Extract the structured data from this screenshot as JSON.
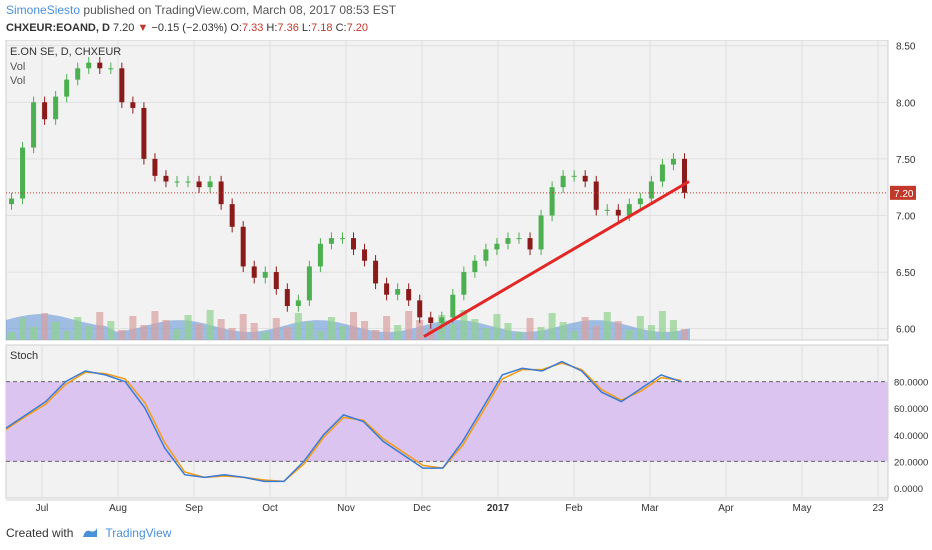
{
  "header": {
    "author": "SimoneSiesto",
    "published": "published on TradingView.com, March 08, 2017 08:53 EST",
    "symbol": "CHXEUR:EOAND, D",
    "last": "7.20",
    "change": "−0.15 (−2.03%)",
    "o_label": "O:",
    "o_val": "7.33",
    "h_label": "H:",
    "h_val": "7.36",
    "l_label": "L:",
    "l_val": "7.18",
    "c_label": "C:",
    "c_val": "7.20"
  },
  "footer": {
    "created_with": "Created with",
    "brand": "TradingView"
  },
  "chart_data": [
    {
      "type": "candlestick",
      "title": "E.ON SE, D, CHXEUR",
      "legend": [
        "Vol",
        "Vol"
      ],
      "ylim": [
        5.9,
        8.55
      ],
      "yticks": [
        "8.50",
        "8.00",
        "7.50",
        "7.00",
        "6.50",
        "6.00"
      ],
      "last_price_label": "7.20",
      "x_labels": [
        "Jul",
        "Aug",
        "Sep",
        "Oct",
        "Nov",
        "Dec",
        "2017",
        "Feb",
        "Mar",
        "Apr",
        "May",
        "23"
      ],
      "close": [
        7.15,
        7.6,
        8.0,
        7.85,
        8.05,
        8.2,
        8.3,
        8.35,
        8.3,
        8.3,
        8.0,
        7.95,
        7.5,
        7.35,
        7.3,
        7.3,
        7.3,
        7.25,
        7.3,
        7.1,
        6.9,
        6.55,
        6.45,
        6.5,
        6.35,
        6.2,
        6.25,
        6.55,
        6.75,
        6.8,
        6.8,
        6.7,
        6.6,
        6.4,
        6.3,
        6.35,
        6.25,
        6.1,
        6.05,
        6.1,
        6.3,
        6.5,
        6.6,
        6.7,
        6.75,
        6.8,
        6.8,
        6.7,
        7.0,
        7.25,
        7.35,
        7.35,
        7.3,
        7.05,
        7.05,
        7.0,
        7.1,
        7.15,
        7.3,
        7.45,
        7.5,
        7.2
      ],
      "trendline": {
        "from": [
          0.0,
          5.93
        ],
        "to": [
          1.0,
          7.3
        ]
      },
      "stoch_title": "Stoch",
      "stoch_yticks": [
        "80.0000",
        "60.0000",
        "40.0000",
        "20.0000",
        "0.0000"
      ],
      "stoch_band": [
        20,
        80
      ],
      "stoch_k": [
        45,
        55,
        65,
        80,
        88,
        85,
        80,
        60,
        30,
        10,
        8,
        10,
        8,
        5,
        5,
        20,
        40,
        55,
        50,
        35,
        25,
        15,
        15,
        35,
        60,
        85,
        90,
        88,
        95,
        88,
        72,
        65,
        75,
        85,
        80
      ],
      "stoch_d": [
        44,
        54,
        63,
        78,
        87,
        86,
        82,
        64,
        34,
        12,
        8,
        9,
        8,
        6,
        5,
        18,
        38,
        53,
        51,
        37,
        27,
        17,
        15,
        32,
        57,
        82,
        89,
        89,
        94,
        89,
        74,
        66,
        73,
        83,
        81
      ]
    }
  ],
  "colors": {
    "up": "#4caf50",
    "down": "#8b1a1a",
    "trend": "#e32626",
    "stoch_k": "#3a7bd5",
    "stoch_d": "#f39c12",
    "band": "#dbc4f0",
    "vol": "#5b8fd6"
  }
}
